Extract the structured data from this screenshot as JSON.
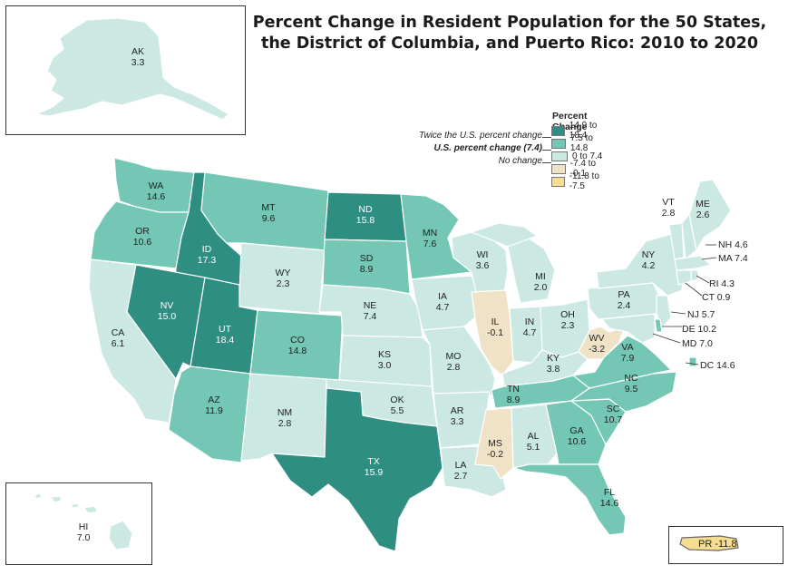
{
  "title_line1": "Percent Change in Resident Population for the 50 States,",
  "title_line2": "the District of Columbia, and Puerto Rico: 2010 to 2020",
  "legend": {
    "title": "Percent Change",
    "classes": [
      {
        "label": "14.9 to 18.4",
        "color": "#2f8e82"
      },
      {
        "label": "7.5 to 14.8",
        "color": "#73c7b4"
      },
      {
        "label": "0 to 7.4",
        "color": "#cbe9e2"
      },
      {
        "label": "-7.4 to -0.1",
        "color": "#efe2c6"
      },
      {
        "label": "-11.8 to -7.5",
        "color": "#f6dd92"
      }
    ],
    "notes": {
      "twice": "Twice the U.S. percent change",
      "us": "U.S. percent change (7.4)",
      "none": "No change"
    }
  },
  "states": {
    "AK": {
      "abbr": "AK",
      "value": "3.3"
    },
    "HI": {
      "abbr": "HI",
      "value": "7.0"
    },
    "WA": {
      "abbr": "WA",
      "value": "14.6"
    },
    "OR": {
      "abbr": "OR",
      "value": "10.6"
    },
    "CA": {
      "abbr": "CA",
      "value": "6.1"
    },
    "ID": {
      "abbr": "ID",
      "value": "17.3"
    },
    "NV": {
      "abbr": "NV",
      "value": "15.0"
    },
    "MT": {
      "abbr": "MT",
      "value": "9.6"
    },
    "WY": {
      "abbr": "WY",
      "value": "2.3"
    },
    "UT": {
      "abbr": "UT",
      "value": "18.4"
    },
    "AZ": {
      "abbr": "AZ",
      "value": "11.9"
    },
    "CO": {
      "abbr": "CO",
      "value": "14.8"
    },
    "NM": {
      "abbr": "NM",
      "value": "2.8"
    },
    "ND": {
      "abbr": "ND",
      "value": "15.8"
    },
    "SD": {
      "abbr": "SD",
      "value": "8.9"
    },
    "NE": {
      "abbr": "NE",
      "value": "7.4"
    },
    "KS": {
      "abbr": "KS",
      "value": "3.0"
    },
    "OK": {
      "abbr": "OK",
      "value": "5.5"
    },
    "TX": {
      "abbr": "TX",
      "value": "15.9"
    },
    "MN": {
      "abbr": "MN",
      "value": "7.6"
    },
    "IA": {
      "abbr": "IA",
      "value": "4.7"
    },
    "MO": {
      "abbr": "MO",
      "value": "2.8"
    },
    "AR": {
      "abbr": "AR",
      "value": "3.3"
    },
    "LA": {
      "abbr": "LA",
      "value": "2.7"
    },
    "WI": {
      "abbr": "WI",
      "value": "3.6"
    },
    "IL": {
      "abbr": "IL",
      "value": "-0.1"
    },
    "MI": {
      "abbr": "MI",
      "value": "2.0"
    },
    "IN": {
      "abbr": "IN",
      "value": "4.7"
    },
    "OH": {
      "abbr": "OH",
      "value": "2.3"
    },
    "KY": {
      "abbr": "KY",
      "value": "3.8"
    },
    "TN": {
      "abbr": "TN",
      "value": "8.9"
    },
    "MS": {
      "abbr": "MS",
      "value": "-0.2"
    },
    "AL": {
      "abbr": "AL",
      "value": "5.1"
    },
    "GA": {
      "abbr": "GA",
      "value": "10.6"
    },
    "FL": {
      "abbr": "FL",
      "value": "14.6"
    },
    "SC": {
      "abbr": "SC",
      "value": "10.7"
    },
    "NC": {
      "abbr": "NC",
      "value": "9.5"
    },
    "VA": {
      "abbr": "VA",
      "value": "7.9"
    },
    "WV": {
      "abbr": "WV",
      "value": "-3.2"
    },
    "PA": {
      "abbr": "PA",
      "value": "2.4"
    },
    "NY": {
      "abbr": "NY",
      "value": "4.2"
    },
    "VT": {
      "abbr": "VT",
      "value": "2.8"
    },
    "ME": {
      "abbr": "ME",
      "value": "2.6"
    },
    "NH": {
      "abbr": "NH",
      "value": "4.6"
    },
    "MA": {
      "abbr": "MA",
      "value": "7.4"
    },
    "RI": {
      "abbr": "RI",
      "value": "4.3"
    },
    "CT": {
      "abbr": "CT",
      "value": "0.9"
    },
    "NJ": {
      "abbr": "NJ",
      "value": "5.7"
    },
    "DE": {
      "abbr": "DE",
      "value": "10.2"
    },
    "MD": {
      "abbr": "MD",
      "value": "7.0"
    },
    "DC": {
      "abbr": "DC",
      "value": "14.6"
    },
    "PR": {
      "abbr": "PR",
      "value": "-11.8"
    }
  }
}
